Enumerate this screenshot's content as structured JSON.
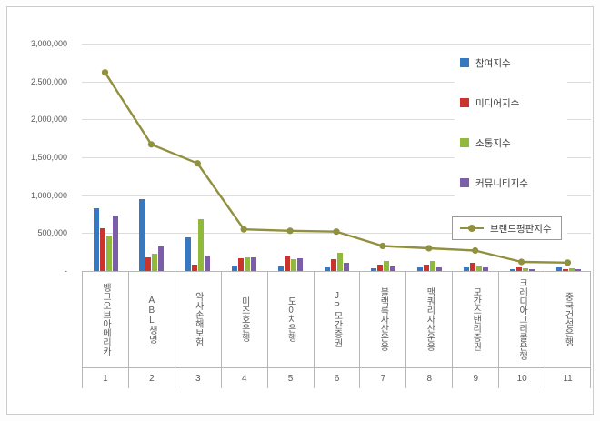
{
  "chart_data": {
    "type": "bar",
    "combo": "grouped bars + line overlay",
    "categories": [
      "뱅크오브아메리카",
      "ABL생명",
      "악사손해보험",
      "미즈호은행",
      "도이치은행",
      "JP모간증권",
      "블랙록자산운용",
      "맥쿼리자산운용",
      "모간스탠리증권",
      "크레디아그리콜은행",
      "중국건설은행"
    ],
    "category_ranks": [
      "1",
      "2",
      "3",
      "4",
      "5",
      "6",
      "7",
      "8",
      "9",
      "10",
      "11"
    ],
    "series": [
      {
        "name": "참여지수",
        "chart_type": "bar",
        "color": "#3679c0",
        "values": [
          830000,
          950000,
          450000,
          70000,
          60000,
          50000,
          40000,
          50000,
          50000,
          25000,
          50000
        ]
      },
      {
        "name": "미디어지수",
        "chart_type": "bar",
        "color": "#c9342c",
        "values": [
          570000,
          180000,
          90000,
          165000,
          200000,
          155000,
          85000,
          85000,
          105000,
          50000,
          25000
        ]
      },
      {
        "name": "소통지수",
        "chart_type": "bar",
        "color": "#8fba3c",
        "values": [
          470000,
          230000,
          680000,
          180000,
          155000,
          240000,
          130000,
          130000,
          60000,
          35000,
          35000
        ]
      },
      {
        "name": "커뮤니티지수",
        "chart_type": "bar",
        "color": "#7b5ea7",
        "values": [
          730000,
          320000,
          190000,
          180000,
          165000,
          105000,
          60000,
          50000,
          50000,
          25000,
          25000
        ]
      },
      {
        "name": "브랜드평판지수",
        "chart_type": "line",
        "color": "#91903e",
        "values": [
          2620000,
          1670000,
          1420000,
          550000,
          530000,
          520000,
          330000,
          300000,
          270000,
          120000,
          110000
        ]
      }
    ],
    "y_axis": {
      "min": 0,
      "max": 3000000,
      "step": 500000,
      "tick_labels": [
        "-",
        "500,000",
        "1,000,000",
        "1,500,000",
        "2,000,000",
        "2,500,000",
        "3,000,000"
      ]
    },
    "legend": {
      "position": "right-inside",
      "highlighted_entry": "브랜드평판지수"
    },
    "grid": true,
    "title": ""
  }
}
